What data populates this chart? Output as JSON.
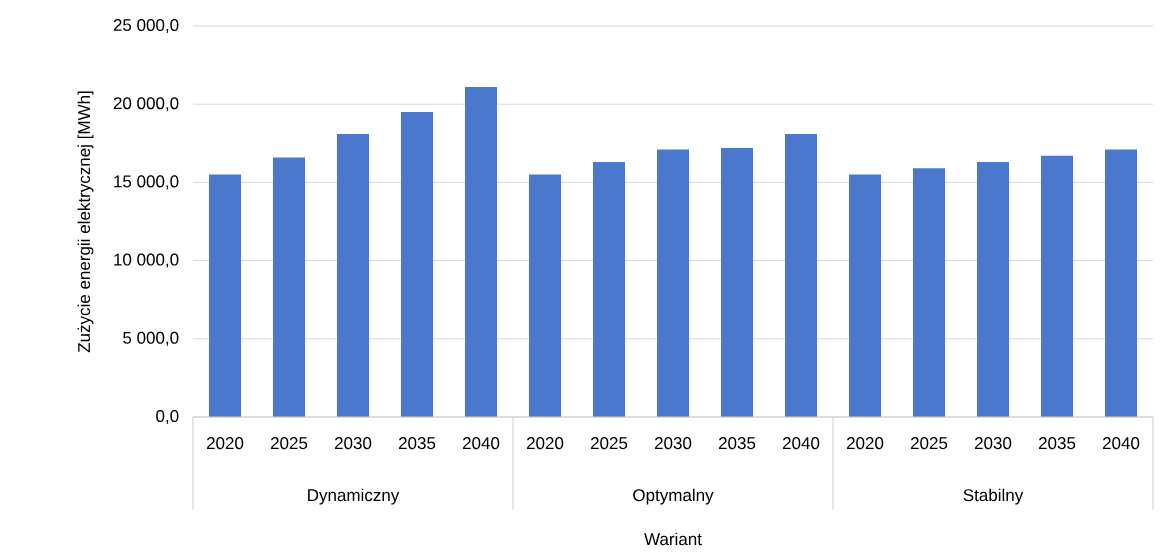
{
  "chart_data": {
    "type": "bar",
    "xlabel": "Wariant",
    "ylabel": "Zużycie energii elektrycznej [MWh]",
    "categories": [
      "2020",
      "2025",
      "2030",
      "2035",
      "2040",
      "2020",
      "2025",
      "2030",
      "2035",
      "2040",
      "2020",
      "2025",
      "2030",
      "2035",
      "2040"
    ],
    "values": [
      15500,
      16600,
      18100,
      19500,
      21100,
      15500,
      16300,
      17100,
      17200,
      18100,
      15500,
      15900,
      16300,
      16700,
      17100
    ],
    "color": "#4a78cc",
    "ylim": [
      0,
      25000
    ],
    "yticks": [
      {
        "value": 0,
        "label": "0,0"
      },
      {
        "value": 5000,
        "label": "5 000,0"
      },
      {
        "value": 10000,
        "label": "10 000,0"
      },
      {
        "value": 15000,
        "label": "15 000,0"
      },
      {
        "value": 20000,
        "label": "20 000,0"
      },
      {
        "value": 25000,
        "label": "25 000,0"
      }
    ],
    "grid": "y",
    "annotations": [
      "Dynamiczny",
      "Optymalny",
      "Stabilny"
    ]
  }
}
